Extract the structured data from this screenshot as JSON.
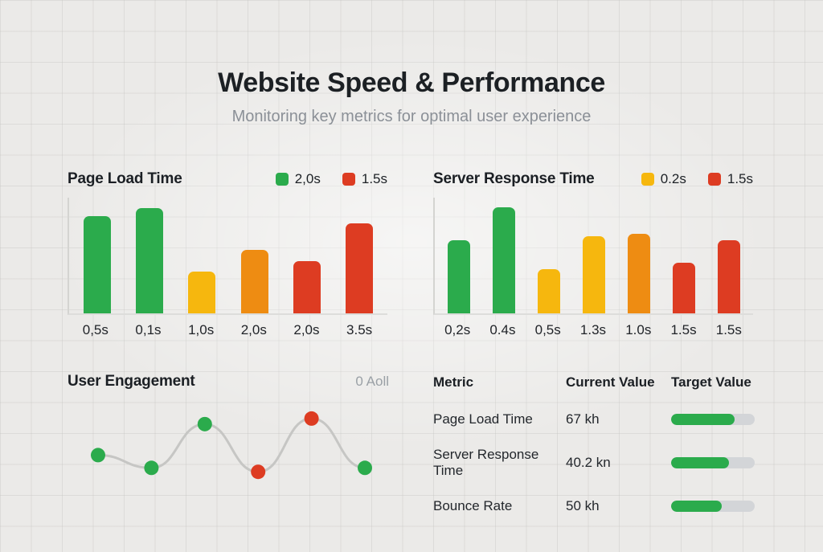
{
  "header": {
    "title": "Website Speed & Performance",
    "subtitle": "Monitoring key metrics for optimal user experience"
  },
  "theme": {
    "green": "#2bab4c",
    "yellow": "#f6b70e",
    "orange": "#ee8c12",
    "red": "#dd3c22",
    "line_gray": "#c6c6c4",
    "track_gray": "#d3d5d8"
  },
  "chart_data": [
    {
      "type": "bar",
      "title": "Page Load Time",
      "legend": [
        {
          "label": "2,0s",
          "color": "#2bab4c"
        },
        {
          "label": "1.5s",
          "color": "#dd3c22"
        }
      ],
      "categories": [
        "0,5s",
        "0,1s",
        "1,0s",
        "2,0s",
        "2,0s",
        "3.5s"
      ],
      "values_pct": [
        84,
        91,
        36,
        55,
        45,
        78
      ],
      "bar_colors": [
        "#2bab4c",
        "#2bab4c",
        "#f6b70e",
        "#ee8c12",
        "#dd3c22",
        "#dd3c22"
      ],
      "xlabel": "",
      "ylabel": "",
      "grid": false,
      "legend_position": "top-right"
    },
    {
      "type": "bar",
      "title": "Server Response Time",
      "legend": [
        {
          "label": "0.2s",
          "color": "#f6b70e"
        },
        {
          "label": "1.5s",
          "color": "#dd3c22"
        }
      ],
      "categories": [
        "0,2s",
        "0.4s",
        "0,5s",
        "1.3s",
        "1.0s",
        "1.5s",
        "1.5s"
      ],
      "values_pct": [
        63,
        92,
        38,
        67,
        69,
        44,
        63
      ],
      "bar_colors": [
        "#2bab4c",
        "#2bab4c",
        "#f6b70e",
        "#f6b70e",
        "#ee8c12",
        "#dd3c22",
        "#dd3c22"
      ],
      "xlabel": "",
      "ylabel": "",
      "grid": false,
      "legend_position": "top-right"
    },
    {
      "type": "line",
      "title": "User Engagement",
      "annotation": "0 Aoll",
      "x": [
        1,
        2,
        3,
        4,
        5,
        6
      ],
      "values_pct": [
        43,
        27,
        82,
        22,
        89,
        27
      ],
      "point_colors": [
        "#2bab4c",
        "#2bab4c",
        "#2bab4c",
        "#dd3c22",
        "#dd3c22",
        "#2bab4c"
      ],
      "line_color": "#c6c6c4",
      "grid": false
    },
    {
      "type": "table",
      "headers": [
        "Metric",
        "Current Value",
        "Target Value"
      ],
      "rows": [
        {
          "metric": "Page Load Time",
          "current": "67 kh",
          "target_pct": 76,
          "bar_color": "#2bab4c"
        },
        {
          "metric": "Server Response Time",
          "current": "40.2 kn",
          "target_pct": 69,
          "bar_color": "#2bab4c"
        },
        {
          "metric": "Bounce Rate",
          "current": "50 kh",
          "target_pct": 61,
          "bar_color": "#2bab4c"
        }
      ]
    }
  ]
}
